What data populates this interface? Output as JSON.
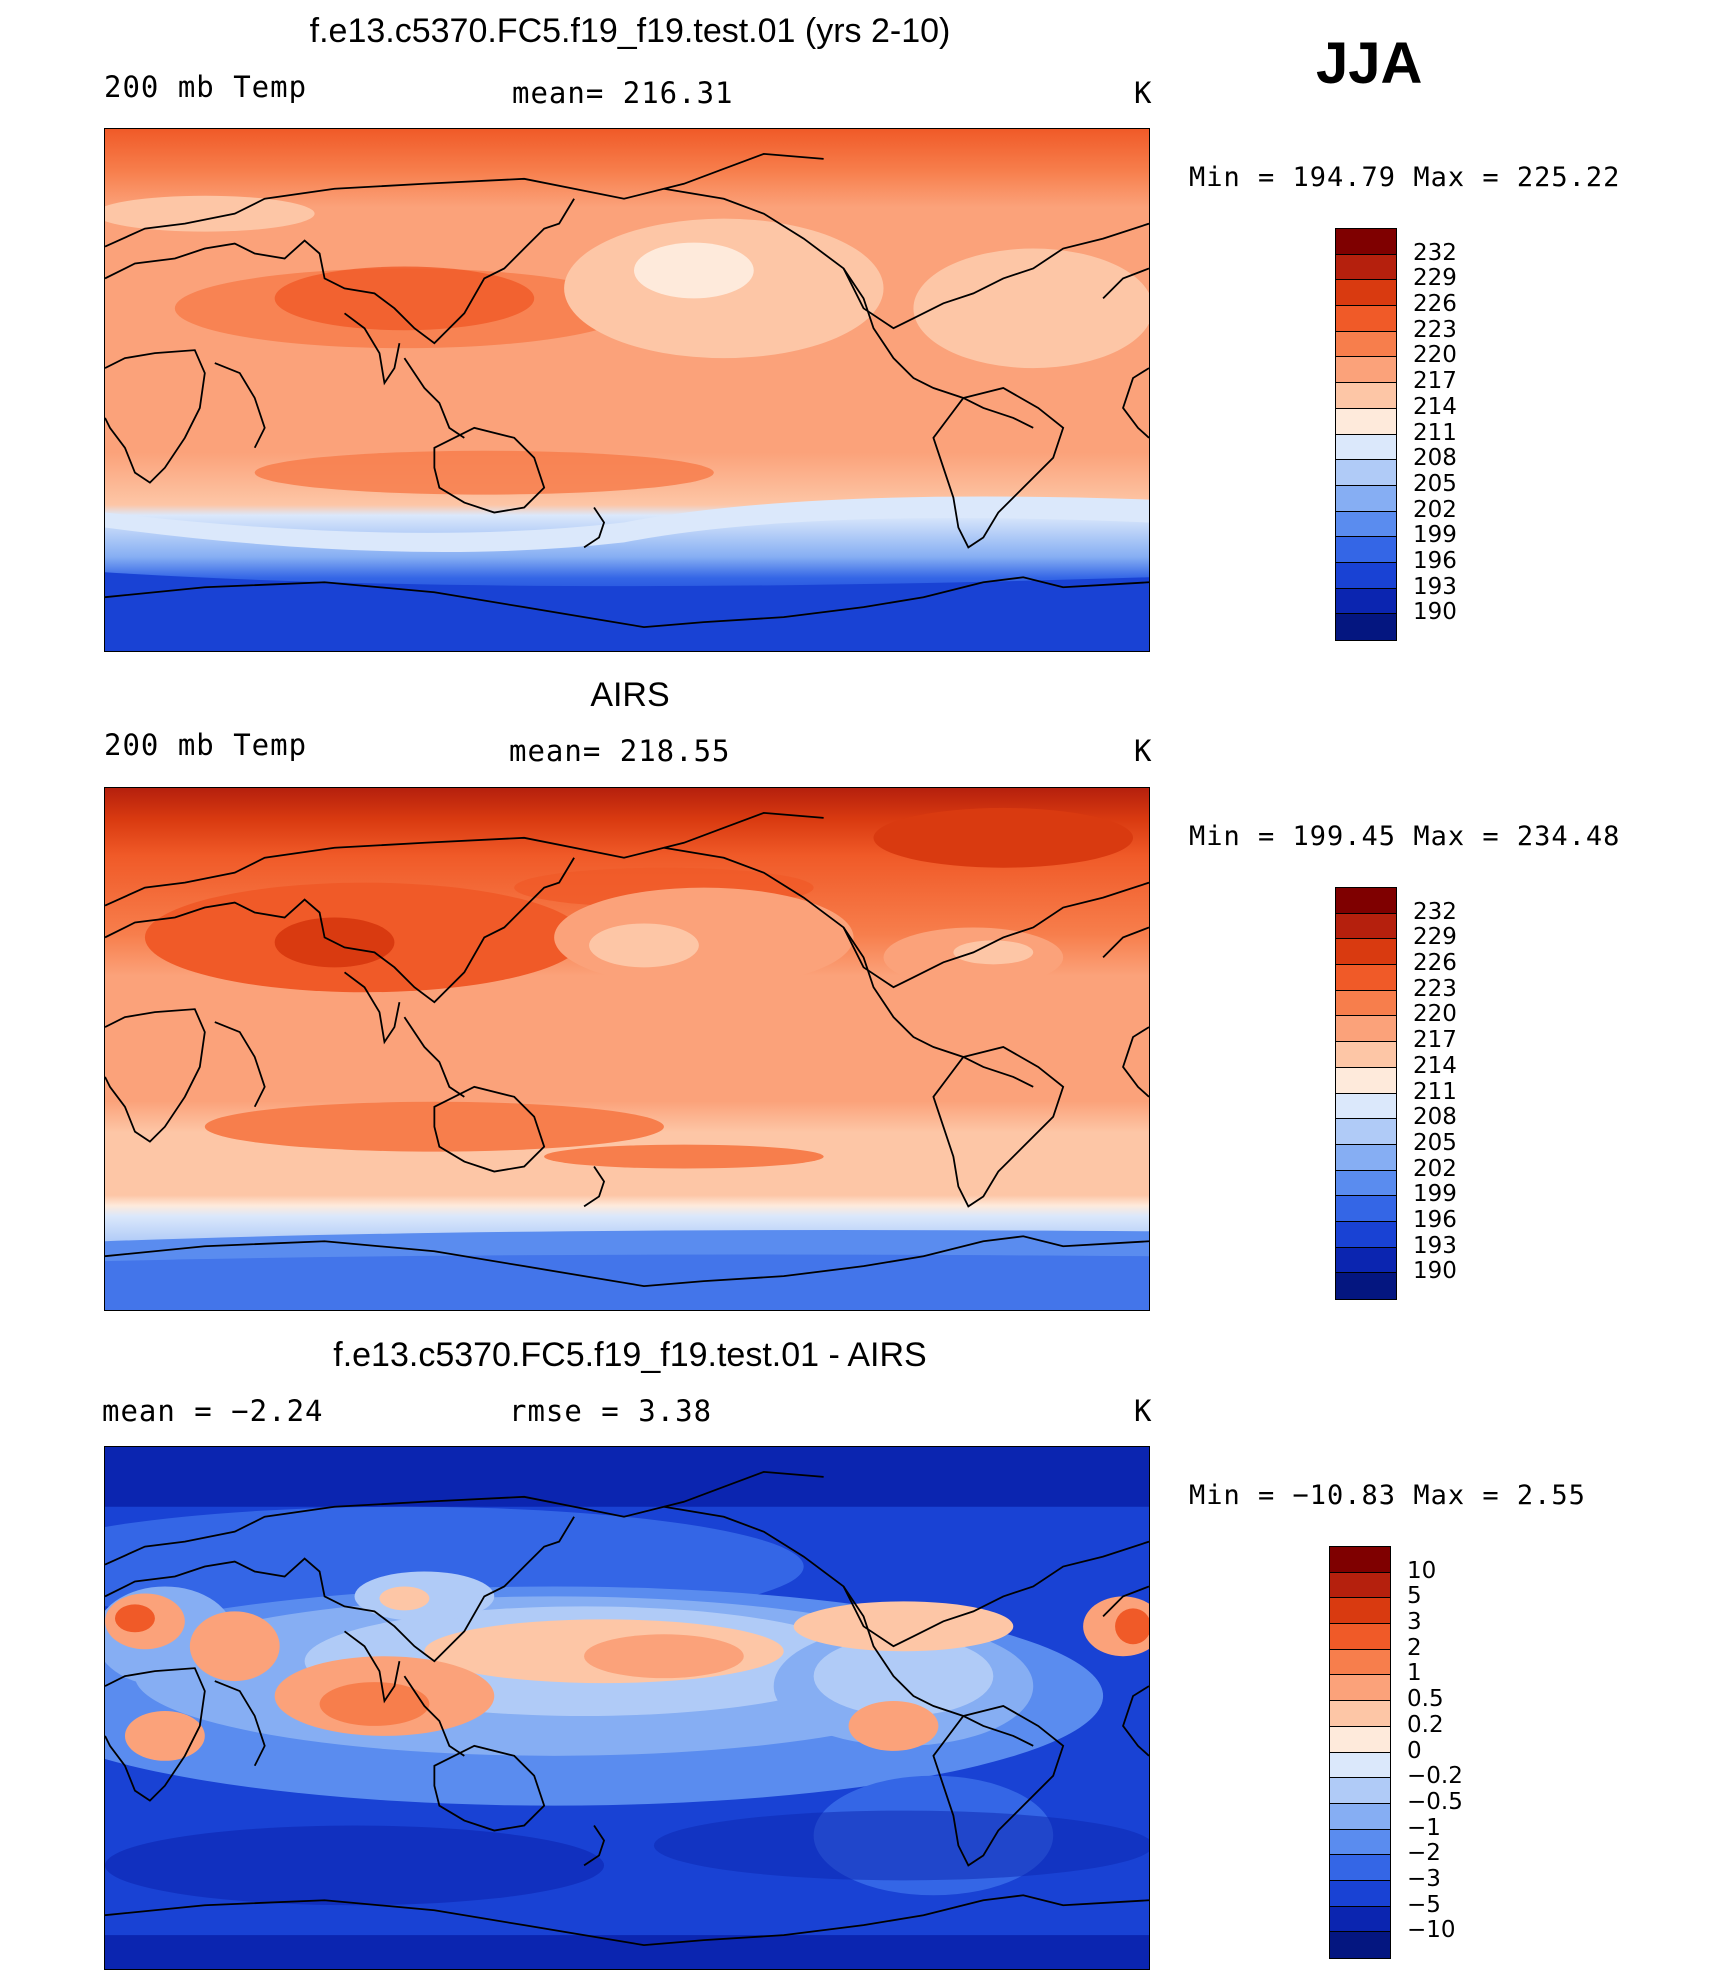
{
  "season": "JJA",
  "panels": [
    {
      "title": "f.e13.c5370.FC5.f19_f19.test.01 (yrs 2-10)",
      "left_label": "200 mb Temp",
      "center_label": "mean= 216.31",
      "units": "K",
      "minmax": "Min  =  194.79  Max  =  225.22",
      "colorbar": {
        "labels": [
          "232",
          "229",
          "226",
          "223",
          "220",
          "217",
          "214",
          "211",
          "208",
          "205",
          "202",
          "199",
          "196",
          "193",
          "190"
        ],
        "colors": [
          "#7f0000",
          "#b5200d",
          "#d93a10",
          "#f05a28",
          "#f77e4c",
          "#fba27a",
          "#fdc6a6",
          "#feeadb",
          "#dbe8fb",
          "#b0cbf7",
          "#86aef3",
          "#5a8cef",
          "#3466e6",
          "#1942d4",
          "#0b25b0",
          "#041680"
        ]
      }
    },
    {
      "title": "AIRS",
      "left_label": "200 mb Temp",
      "center_label": "mean= 218.55",
      "units": "K",
      "minmax": "Min  =  199.45  Max  =  234.48",
      "colorbar": {
        "labels": [
          "232",
          "229",
          "226",
          "223",
          "220",
          "217",
          "214",
          "211",
          "208",
          "205",
          "202",
          "199",
          "196",
          "193",
          "190"
        ],
        "colors": [
          "#7f0000",
          "#b5200d",
          "#d93a10",
          "#f05a28",
          "#f77e4c",
          "#fba27a",
          "#fdc6a6",
          "#feeadb",
          "#dbe8fb",
          "#b0cbf7",
          "#86aef3",
          "#5a8cef",
          "#3466e6",
          "#1942d4",
          "#0b25b0",
          "#041680"
        ]
      }
    },
    {
      "title": "f.e13.c5370.FC5.f19_f19.test.01 - AIRS",
      "left_label": "mean =    −2.24",
      "center_label": "rmse =     3.38",
      "units": "K",
      "minmax": "Min  =  −10.83  Max  =     2.55",
      "colorbar": {
        "labels": [
          "10",
          "5",
          "3",
          "2",
          "1",
          "0.5",
          "0.2",
          "0",
          "−0.2",
          "−0.5",
          "−1",
          "−2",
          "−3",
          "−5",
          "−10"
        ],
        "colors": [
          "#7f0000",
          "#b5200d",
          "#d93a10",
          "#f05a28",
          "#f77e4c",
          "#fba27a",
          "#fdc6a6",
          "#feeadb",
          "#dbe8fb",
          "#b0cbf7",
          "#86aef3",
          "#5a8cef",
          "#3466e6",
          "#1942d4",
          "#0b25b0",
          "#041680"
        ]
      }
    }
  ]
}
